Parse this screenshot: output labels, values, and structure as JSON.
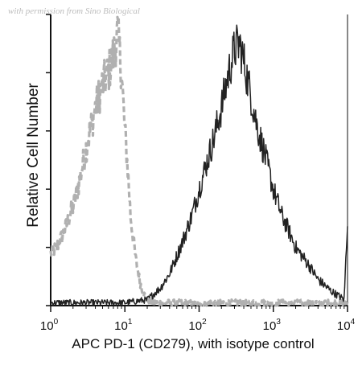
{
  "watermark": "with permission from Sino Biological",
  "chart_data": {
    "type": "area",
    "title": "",
    "xlabel": "APC PD-1 (CD279), with isotype control",
    "ylabel": "Relative Cell Number",
    "x_scale": "log",
    "xlim": [
      1,
      10000
    ],
    "x_ticks": [
      {
        "base": "10",
        "exp": "0",
        "value": 1
      },
      {
        "base": "10",
        "exp": "1",
        "value": 10
      },
      {
        "base": "10",
        "exp": "2",
        "value": 100
      },
      {
        "base": "10",
        "exp": "3",
        "value": 1000
      },
      {
        "base": "10",
        "exp": "4",
        "value": 10000
      }
    ],
    "ylim": [
      0,
      1
    ],
    "y_tick_labels": "none",
    "grid": false,
    "series": [
      {
        "style": "dashed",
        "color": "#b0b0b0",
        "x": [
          1,
          1.2,
          1.5,
          2,
          2.5,
          3,
          4,
          5,
          6,
          7,
          8,
          9,
          10,
          11,
          12,
          14,
          16,
          18,
          20,
          25,
          30,
          50,
          100,
          1000,
          10000
        ],
        "y": [
          0.18,
          0.2,
          0.25,
          0.34,
          0.44,
          0.54,
          0.68,
          0.76,
          0.8,
          0.86,
          0.94,
          0.8,
          0.6,
          0.46,
          0.3,
          0.16,
          0.08,
          0.04,
          0.02,
          0.01,
          0.01,
          0.01,
          0.01,
          0.01,
          0.01
        ]
      },
      {
        "style": "solid",
        "color": "#222222",
        "x": [
          1,
          3,
          10,
          20,
          30,
          40,
          50,
          60,
          80,
          100,
          130,
          160,
          200,
          250,
          300,
          350,
          400,
          500,
          600,
          800,
          1000,
          1300,
          1600,
          2000,
          3000,
          4000,
          6000,
          8000,
          9000,
          10000
        ],
        "y": [
          0.01,
          0.01,
          0.01,
          0.02,
          0.06,
          0.11,
          0.17,
          0.22,
          0.31,
          0.4,
          0.5,
          0.58,
          0.68,
          0.8,
          0.88,
          0.9,
          0.84,
          0.72,
          0.62,
          0.5,
          0.4,
          0.31,
          0.26,
          0.2,
          0.14,
          0.09,
          0.05,
          0.03,
          0.02,
          0.3
        ]
      }
    ]
  }
}
